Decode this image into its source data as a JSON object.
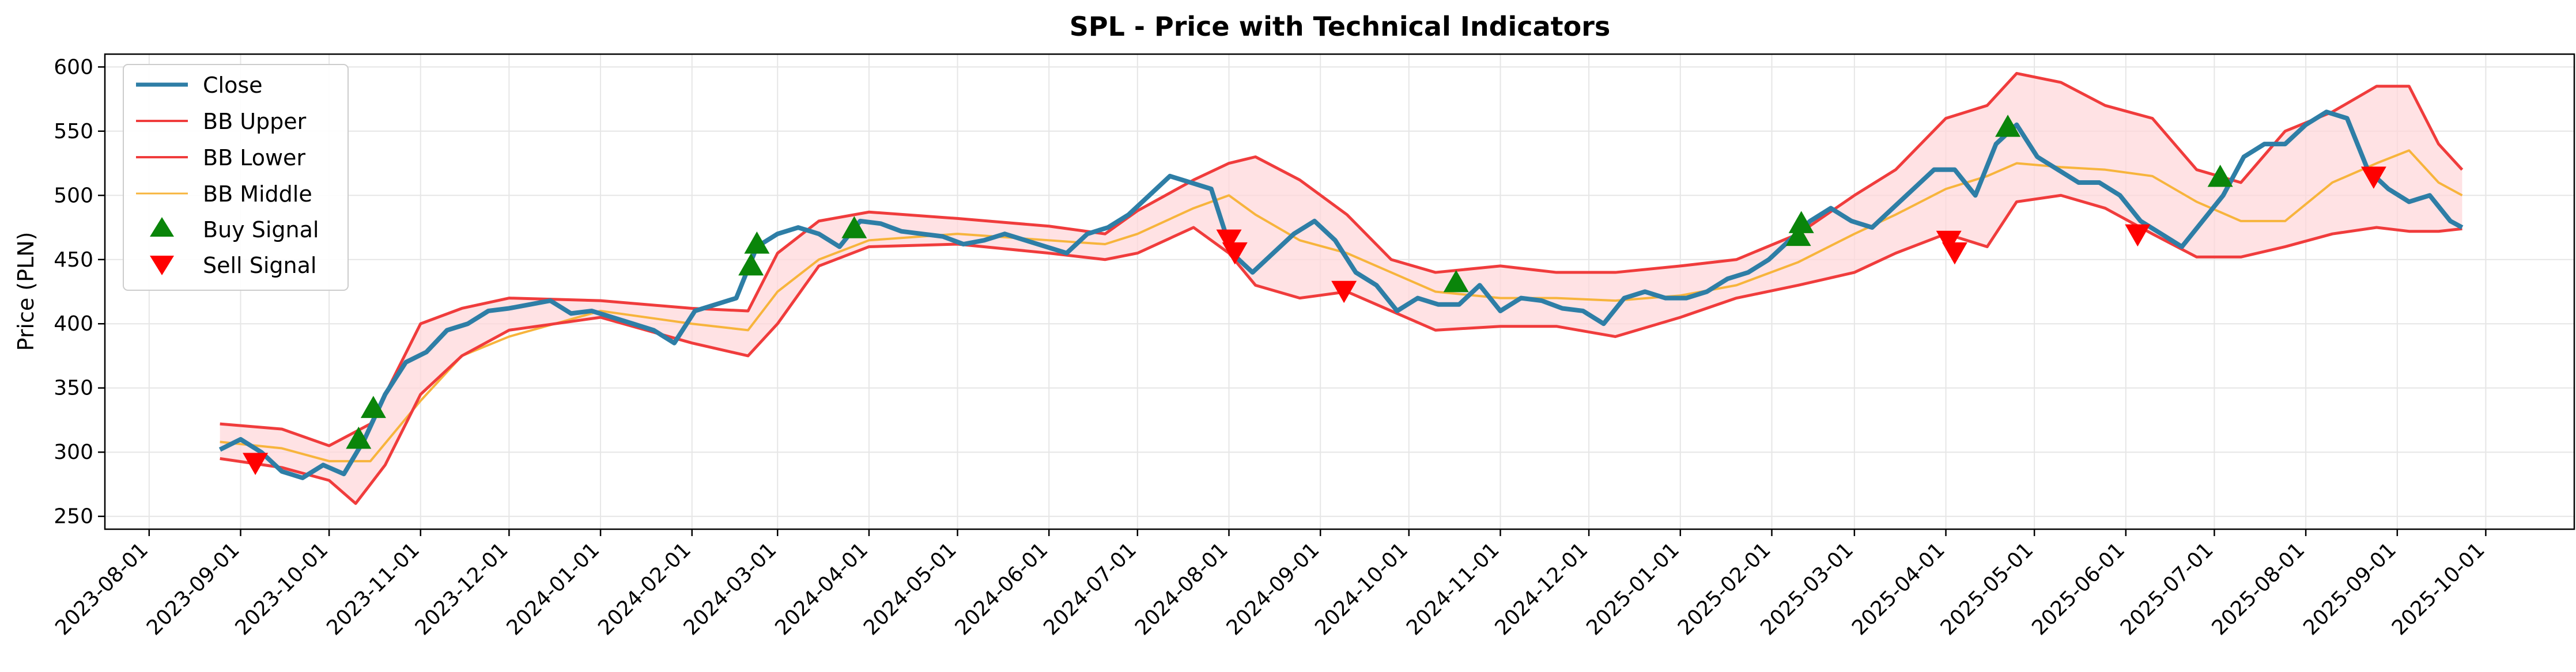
{
  "chart_data": {
    "type": "line",
    "title": "SPL - Price with Technical Indicators",
    "xlabel": "",
    "ylabel": "Price (PLN)",
    "xlim": [
      "2023-07-17",
      "2025-10-31"
    ],
    "ylim": [
      240,
      610
    ],
    "y_ticks": [
      250,
      300,
      350,
      400,
      450,
      500,
      550,
      600
    ],
    "x_ticks": [
      "2023-08-01",
      "2023-09-01",
      "2023-10-01",
      "2023-11-01",
      "2023-12-01",
      "2024-01-01",
      "2024-02-01",
      "2024-03-01",
      "2024-04-01",
      "2024-05-01",
      "2024-06-01",
      "2024-07-01",
      "2024-08-01",
      "2024-09-01",
      "2024-10-01",
      "2024-11-01",
      "2024-12-01",
      "2025-01-01",
      "2025-02-01",
      "2025-03-01",
      "2025-04-01",
      "2025-05-01",
      "2025-06-01",
      "2025-07-01",
      "2025-08-01",
      "2025-09-01",
      "2025-10-01"
    ],
    "grid": true,
    "legend_position": "top-left",
    "colors": {
      "close": "#2e7ea6",
      "bb_upper": "#f03c3c",
      "bb_lower": "#f03c3c",
      "bb_middle": "#f7b43c",
      "band_fill": "#ffd6d9",
      "buy": "#0a850a",
      "sell": "#ff0000"
    },
    "series": [
      {
        "name": "Close",
        "x": [
          "2023-08-25",
          "2023-09-01",
          "2023-09-08",
          "2023-09-15",
          "2023-09-22",
          "2023-09-29",
          "2023-10-06",
          "2023-10-13",
          "2023-10-20",
          "2023-10-27",
          "2023-11-03",
          "2023-11-10",
          "2023-11-17",
          "2023-11-24",
          "2023-12-01",
          "2023-12-08",
          "2023-12-15",
          "2023-12-22",
          "2023-12-29",
          "2024-01-05",
          "2024-01-12",
          "2024-01-19",
          "2024-01-26",
          "2024-02-02",
          "2024-02-09",
          "2024-02-16",
          "2024-02-23",
          "2024-03-01",
          "2024-03-08",
          "2024-03-15",
          "2024-03-22",
          "2024-03-29",
          "2024-04-05",
          "2024-04-12",
          "2024-04-19",
          "2024-04-26",
          "2024-05-03",
          "2024-05-10",
          "2024-05-17",
          "2024-05-24",
          "2024-05-31",
          "2024-06-07",
          "2024-06-14",
          "2024-06-21",
          "2024-06-28",
          "2024-07-05",
          "2024-07-12",
          "2024-07-19",
          "2024-07-26",
          "2024-08-02",
          "2024-08-09",
          "2024-08-16",
          "2024-08-23",
          "2024-08-30",
          "2024-09-06",
          "2024-09-13",
          "2024-09-20",
          "2024-09-27",
          "2024-10-04",
          "2024-10-11",
          "2024-10-18",
          "2024-10-25",
          "2024-11-01",
          "2024-11-08",
          "2024-11-15",
          "2024-11-22",
          "2024-11-29",
          "2024-12-06",
          "2024-12-13",
          "2024-12-20",
          "2024-12-27",
          "2025-01-03",
          "2025-01-10",
          "2025-01-17",
          "2025-01-24",
          "2025-01-31",
          "2025-02-07",
          "2025-02-14",
          "2025-02-21",
          "2025-02-28",
          "2025-03-07",
          "2025-03-14",
          "2025-03-21",
          "2025-03-28",
          "2025-04-04",
          "2025-04-11",
          "2025-04-18",
          "2025-04-25",
          "2025-05-02",
          "2025-05-09",
          "2025-05-16",
          "2025-05-23",
          "2025-05-30",
          "2025-06-06",
          "2025-06-13",
          "2025-06-20",
          "2025-06-27",
          "2025-07-04",
          "2025-07-11",
          "2025-07-18",
          "2025-07-25",
          "2025-08-01",
          "2025-08-08",
          "2025-08-15",
          "2025-08-22",
          "2025-08-29",
          "2025-09-05",
          "2025-09-12",
          "2025-09-19",
          "2025-09-23"
        ],
        "values": [
          302,
          310,
          300,
          285,
          280,
          290,
          283,
          310,
          345,
          370,
          378,
          395,
          400,
          410,
          412,
          415,
          418,
          408,
          410,
          405,
          400,
          395,
          385,
          410,
          415,
          420,
          460,
          470,
          475,
          470,
          460,
          480,
          478,
          472,
          470,
          468,
          462,
          465,
          470,
          465,
          460,
          455,
          470,
          475,
          485,
          500,
          515,
          510,
          505,
          455,
          440,
          455,
          470,
          480,
          465,
          440,
          430,
          410,
          420,
          415,
          415,
          430,
          410,
          420,
          418,
          412,
          410,
          400,
          420,
          425,
          420,
          420,
          425,
          435,
          440,
          450,
          465,
          480,
          490,
          480,
          475,
          490,
          505,
          520,
          520,
          500,
          540,
          555,
          530,
          520,
          510,
          510,
          500,
          480,
          470,
          460,
          480,
          500,
          530,
          540,
          540,
          555,
          565,
          560,
          520,
          505,
          495,
          500,
          480,
          475
        ]
      },
      {
        "name": "BB Upper",
        "x": [
          "2023-08-25",
          "2023-09-15",
          "2023-10-01",
          "2023-10-15",
          "2023-11-01",
          "2023-11-15",
          "2023-12-01",
          "2024-01-01",
          "2024-02-01",
          "2024-02-20",
          "2024-03-01",
          "2024-03-15",
          "2024-04-01",
          "2024-05-01",
          "2024-06-01",
          "2024-06-20",
          "2024-07-01",
          "2024-07-20",
          "2024-08-01",
          "2024-08-10",
          "2024-08-25",
          "2024-09-10",
          "2024-09-25",
          "2024-10-10",
          "2024-11-01",
          "2024-11-20",
          "2024-12-10",
          "2025-01-01",
          "2025-01-20",
          "2025-02-10",
          "2025-03-01",
          "2025-03-15",
          "2025-04-01",
          "2025-04-15",
          "2025-04-25",
          "2025-05-10",
          "2025-05-25",
          "2025-06-10",
          "2025-06-25",
          "2025-07-10",
          "2025-07-25",
          "2025-08-10",
          "2025-08-25",
          "2025-09-05",
          "2025-09-15",
          "2025-09-23"
        ],
        "values": [
          322,
          318,
          305,
          322,
          400,
          412,
          420,
          418,
          412,
          410,
          455,
          480,
          487,
          482,
          476,
          470,
          488,
          512,
          525,
          530,
          512,
          485,
          450,
          440,
          445,
          440,
          440,
          445,
          450,
          470,
          500,
          520,
          560,
          570,
          595,
          588,
          570,
          560,
          520,
          510,
          550,
          565,
          585,
          585,
          540,
          520
        ]
      },
      {
        "name": "BB Lower",
        "x": [
          "2023-08-25",
          "2023-09-15",
          "2023-10-01",
          "2023-10-10",
          "2023-10-20",
          "2023-11-01",
          "2023-11-15",
          "2023-12-01",
          "2024-01-01",
          "2024-02-01",
          "2024-02-20",
          "2024-03-01",
          "2024-03-15",
          "2024-04-01",
          "2024-05-01",
          "2024-06-01",
          "2024-06-20",
          "2024-07-01",
          "2024-07-20",
          "2024-08-01",
          "2024-08-10",
          "2024-08-25",
          "2024-09-10",
          "2024-09-25",
          "2024-10-10",
          "2024-11-01",
          "2024-11-20",
          "2024-12-10",
          "2025-01-01",
          "2025-01-20",
          "2025-02-10",
          "2025-03-01",
          "2025-03-15",
          "2025-04-01",
          "2025-04-15",
          "2025-04-25",
          "2025-05-10",
          "2025-05-25",
          "2025-06-10",
          "2025-06-25",
          "2025-07-10",
          "2025-07-25",
          "2025-08-10",
          "2025-08-25",
          "2025-09-05",
          "2025-09-15",
          "2025-09-23"
        ],
        "values": [
          295,
          288,
          278,
          260,
          290,
          345,
          375,
          395,
          405,
          385,
          375,
          400,
          445,
          460,
          462,
          455,
          450,
          455,
          475,
          455,
          430,
          420,
          425,
          410,
          395,
          398,
          398,
          390,
          405,
          420,
          430,
          440,
          455,
          470,
          460,
          495,
          500,
          490,
          470,
          452,
          452,
          460,
          470,
          475,
          472,
          472,
          474
        ]
      },
      {
        "name": "BB Middle",
        "x": [
          "2023-08-25",
          "2023-09-15",
          "2023-10-01",
          "2023-10-15",
          "2023-11-01",
          "2023-11-15",
          "2023-12-01",
          "2024-01-01",
          "2024-02-01",
          "2024-02-20",
          "2024-03-01",
          "2024-03-15",
          "2024-04-01",
          "2024-05-01",
          "2024-06-01",
          "2024-06-20",
          "2024-07-01",
          "2024-07-20",
          "2024-08-01",
          "2024-08-10",
          "2024-08-25",
          "2024-09-10",
          "2024-09-25",
          "2024-10-10",
          "2024-11-01",
          "2024-11-20",
          "2024-12-10",
          "2025-01-01",
          "2025-01-20",
          "2025-02-10",
          "2025-03-01",
          "2025-03-15",
          "2025-04-01",
          "2025-04-15",
          "2025-04-25",
          "2025-05-10",
          "2025-05-25",
          "2025-06-10",
          "2025-06-25",
          "2025-07-10",
          "2025-07-25",
          "2025-08-10",
          "2025-08-25",
          "2025-09-05",
          "2025-09-15",
          "2025-09-23"
        ],
        "values": [
          308,
          303,
          293,
          293,
          340,
          375,
          390,
          410,
          400,
          395,
          425,
          450,
          465,
          470,
          465,
          462,
          470,
          490,
          500,
          485,
          465,
          455,
          440,
          425,
          420,
          420,
          418,
          422,
          430,
          448,
          470,
          485,
          505,
          515,
          525,
          522,
          520,
          515,
          495,
          480,
          480,
          510,
          525,
          535,
          510,
          500
        ]
      },
      {
        "name": "Buy Signal",
        "x": [
          "2023-10-11",
          "2023-10-16",
          "2024-02-21",
          "2024-02-23",
          "2024-03-27",
          "2024-10-17",
          "2025-02-10",
          "2025-02-11",
          "2025-04-22",
          "2025-07-03"
        ],
        "values": [
          310,
          334,
          445,
          462,
          474,
          432,
          468,
          478,
          553,
          514
        ]
      },
      {
        "name": "Sell Signal",
        "x": [
          "2023-09-06",
          "2024-08-01",
          "2024-08-03",
          "2024-09-09",
          "2025-04-02",
          "2025-04-04",
          "2025-06-05",
          "2025-08-24"
        ],
        "values": [
          292,
          466,
          456,
          426,
          465,
          456,
          470,
          515
        ]
      }
    ]
  }
}
